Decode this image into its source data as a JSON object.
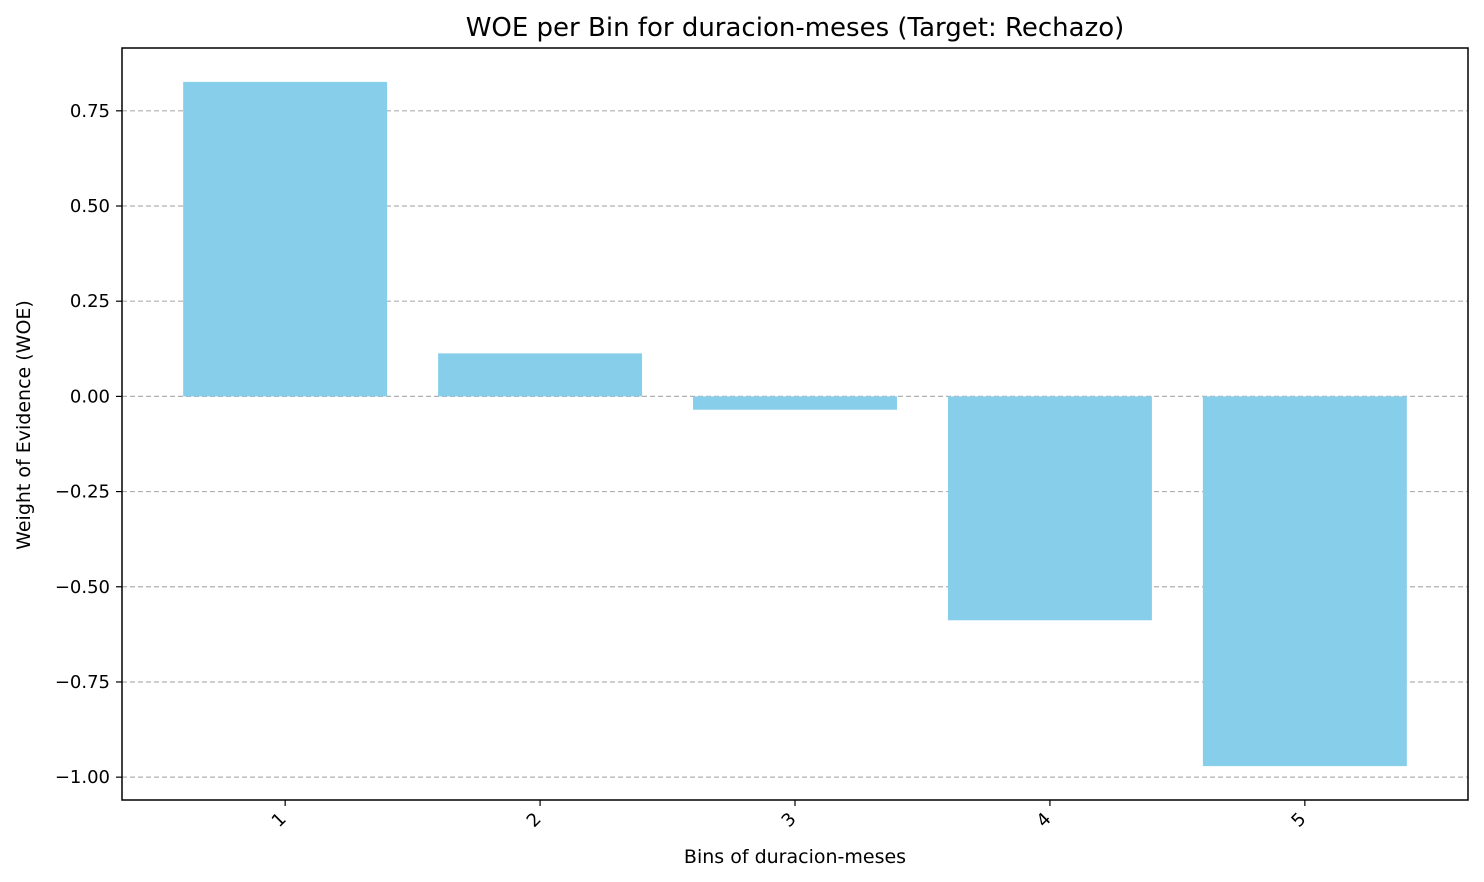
{
  "chart_data": {
    "type": "bar",
    "title": "WOE per Bin for duracion-meses (Target: Rechazo)",
    "xlabel": "Bins of duracion-meses",
    "ylabel": "Weight of Evidence (WOE)",
    "categories": [
      "1",
      "2",
      "3",
      "4",
      "5"
    ],
    "values": [
      0.826,
      0.113,
      -0.035,
      -0.588,
      -0.971
    ],
    "ylim": [
      -1.06,
      0.915
    ],
    "yticks": [
      -1.0,
      -0.75,
      -0.5,
      -0.25,
      0.0,
      0.25,
      0.5,
      0.75
    ],
    "ytick_labels": [
      "−1.00",
      "−0.75",
      "−0.50",
      "−0.25",
      "0.00",
      "0.25",
      "0.50",
      "0.75"
    ],
    "grid": "y-dashed",
    "bar_color": "#87ceeb",
    "xtick_rotation": "45"
  }
}
